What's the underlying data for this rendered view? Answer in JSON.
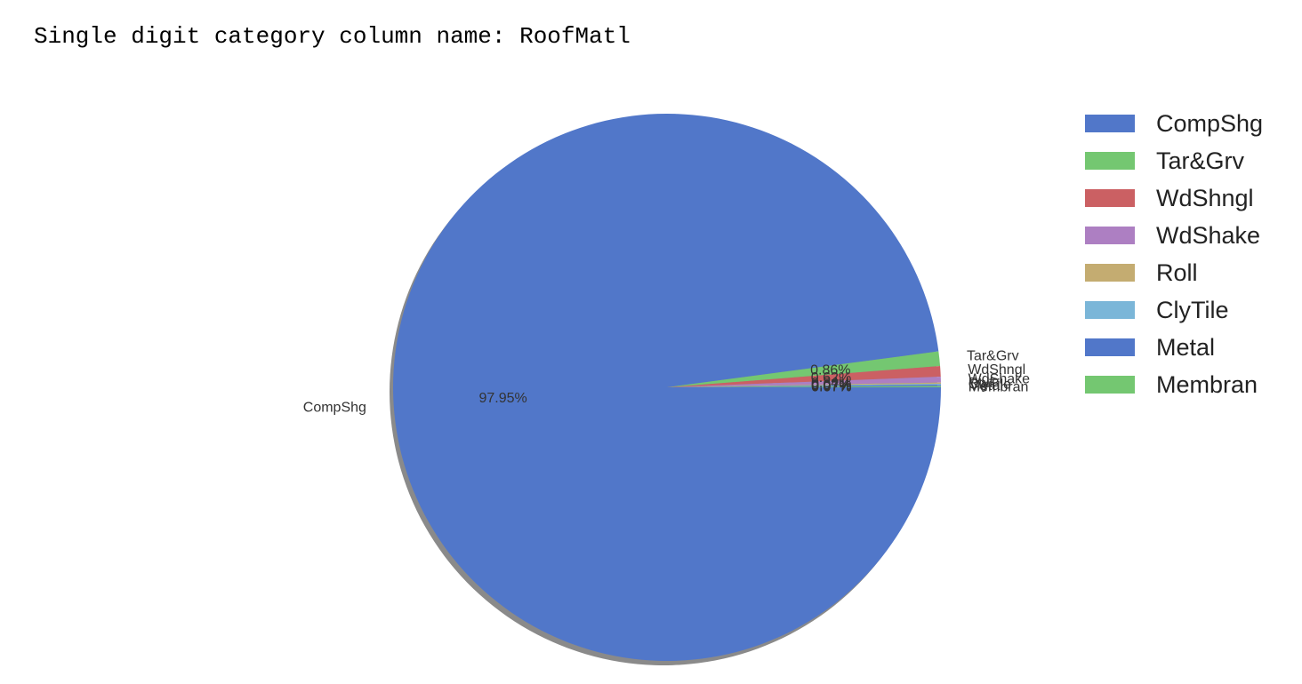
{
  "cell_output": {
    "text": "Single digit category column name: RoofMatl"
  },
  "chart_data": {
    "type": "pie",
    "categories": [
      "CompShg",
      "Tar&Grv",
      "WdShngl",
      "WdShake",
      "Roll",
      "ClyTile",
      "Metal",
      "Membran"
    ],
    "values": [
      97.95,
      0.86,
      0.62,
      0.34,
      0.07,
      0.07,
      0.07,
      0.07
    ],
    "percent_labels": [
      "97.95%",
      "0.86%",
      "0.62%",
      "0.34%",
      "0.07%",
      "0.07%",
      "0.07%",
      "0.07%"
    ],
    "colors": [
      "#5177C9",
      "#74C771",
      "#CB6063",
      "#AD7FC2",
      "#C4AC71",
      "#7BB6D8",
      "#5177C9",
      "#74C771"
    ],
    "start_angle_deg": 0,
    "direction": "counterclockwise",
    "shadow": true,
    "legend_position": "upper-right"
  }
}
